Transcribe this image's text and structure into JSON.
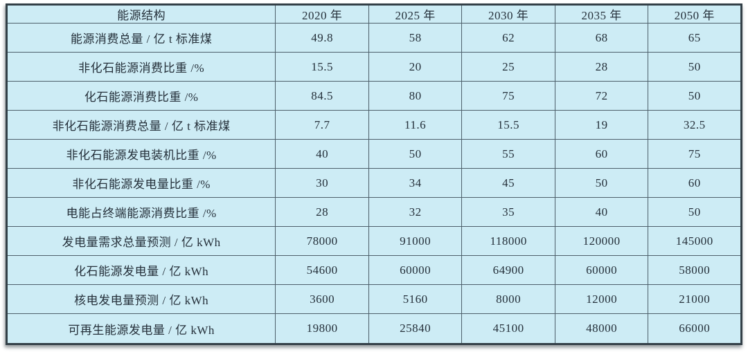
{
  "chart_data": {
    "type": "table",
    "title": "",
    "columns": [
      "能源结构",
      "2020 年",
      "2025 年",
      "2030 年",
      "2035 年",
      "2050 年"
    ],
    "rows": [
      {
        "label": "能源消费总量 / 亿 t 标准煤",
        "values": [
          "49.8",
          "58",
          "62",
          "68",
          "65"
        ]
      },
      {
        "label": "非化石能源消费比重 /%",
        "values": [
          "15.5",
          "20",
          "25",
          "28",
          "50"
        ]
      },
      {
        "label": "化石能源消费比重 /%",
        "values": [
          "84.5",
          "80",
          "75",
          "72",
          "50"
        ]
      },
      {
        "label": "非化石能源消费总量 / 亿 t 标准煤",
        "values": [
          "7.7",
          "11.6",
          "15.5",
          "19",
          "32.5"
        ]
      },
      {
        "label": "非化石能源发电装机比重 /%",
        "values": [
          "40",
          "50",
          "55",
          "60",
          "75"
        ]
      },
      {
        "label": "非化石能源发电量比重 /%",
        "values": [
          "30",
          "34",
          "45",
          "50",
          "60"
        ]
      },
      {
        "label": "电能占终端能源消费比重 /%",
        "values": [
          "28",
          "32",
          "35",
          "40",
          "50"
        ]
      },
      {
        "label": "发电量需求总量预测 / 亿 kWh",
        "values": [
          "78000",
          "91000",
          "118000",
          "120000",
          "145000"
        ]
      },
      {
        "label": "化石能源发电量 / 亿 kWh",
        "values": [
          "54600",
          "60000",
          "64900",
          "60000",
          "58000"
        ]
      },
      {
        "label": "核电发电量预测 / 亿 kWh",
        "values": [
          "3600",
          "5160",
          "8000",
          "12000",
          "21000"
        ]
      },
      {
        "label": "可再生能源发电量 / 亿 kWh",
        "values": [
          "19800",
          "25840",
          "45100",
          "48000",
          "66000"
        ]
      }
    ],
    "layout": {
      "grid": true,
      "header_row": true,
      "all_cells_centered": true
    },
    "colors": {
      "cell_background": "#cdecf5",
      "grid_line": "#4d5f6a",
      "outer_border": "#333f47",
      "text": "#25303a",
      "page_background": "#ffffff"
    }
  }
}
